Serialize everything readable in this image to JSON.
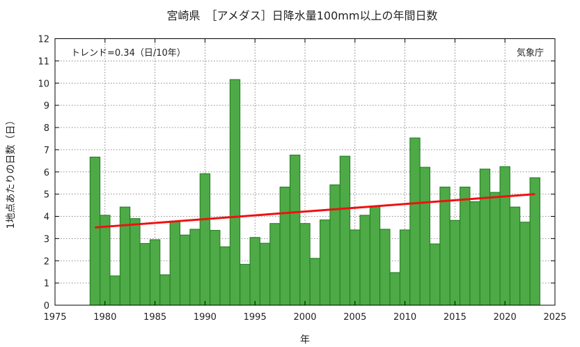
{
  "chart_data": {
    "type": "bar",
    "title": "宮崎県　［アメダス］日降水量100mm以上の年間日数",
    "xlabel": "年",
    "ylabel": "1地点あたりの日数（日）",
    "xlim": [
      1975,
      2025
    ],
    "ylim": [
      0,
      12
    ],
    "xticks": [
      1975,
      1980,
      1985,
      1990,
      1995,
      2000,
      2005,
      2010,
      2015,
      2020,
      2025
    ],
    "yticks": [
      0,
      1,
      2,
      3,
      4,
      5,
      6,
      7,
      8,
      9,
      10,
      11,
      12
    ],
    "grid": true,
    "bar_color": "#4daa46",
    "bar_edge_color": "#1f7a1f",
    "trend_color": "#ee1111",
    "years": [
      1979,
      1980,
      1981,
      1982,
      1983,
      1984,
      1985,
      1986,
      1987,
      1988,
      1989,
      1990,
      1991,
      1992,
      1993,
      1994,
      1995,
      1996,
      1997,
      1998,
      1999,
      2000,
      2001,
      2002,
      2003,
      2004,
      2005,
      2006,
      2007,
      2008,
      2009,
      2010,
      2011,
      2012,
      2013,
      2014,
      2015,
      2016,
      2017,
      2018,
      2019,
      2020,
      2021,
      2022,
      2023
    ],
    "values": [
      6.67,
      4.05,
      1.32,
      4.42,
      3.9,
      2.78,
      2.95,
      1.37,
      3.79,
      3.16,
      3.42,
      5.92,
      3.37,
      2.63,
      10.16,
      1.84,
      3.05,
      2.79,
      3.68,
      5.32,
      6.76,
      3.68,
      2.11,
      3.84,
      5.42,
      6.71,
      3.39,
      4.05,
      4.45,
      3.42,
      1.47,
      3.39,
      7.53,
      6.21,
      2.76,
      5.32,
      3.82,
      5.32,
      4.66,
      6.13,
      5.08,
      6.24,
      4.42,
      3.74,
      5.74
    ],
    "trend": {
      "label": "トレンド=0.34（日/10年）",
      "x": [
        1979,
        2023
      ],
      "y": [
        3.5,
        5.0
      ]
    },
    "source": "気象庁"
  }
}
